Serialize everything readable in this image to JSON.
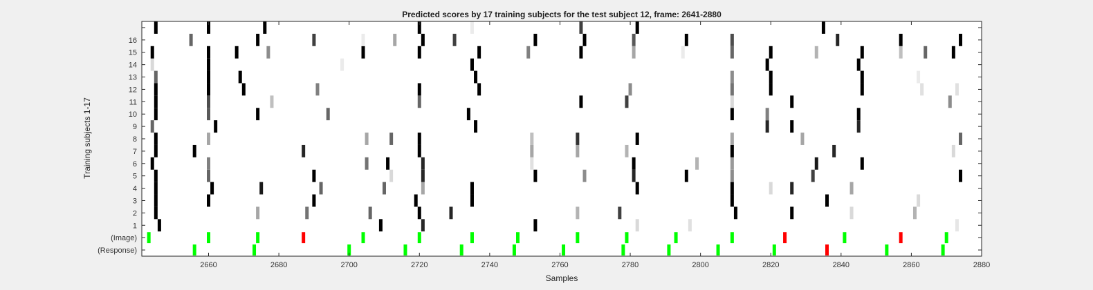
{
  "chart_data": {
    "type": "heatmap",
    "title": "Predicted scores by 17 training subjects for the test subject 12, frame: 2641-2880",
    "xlabel": "Samples",
    "ylabel": "Training subjects 1-17",
    "xlim": [
      2641,
      2880
    ],
    "xticks": [
      2660,
      2680,
      2700,
      2720,
      2740,
      2760,
      2780,
      2800,
      2820,
      2840,
      2860,
      2880
    ],
    "row_labels": [
      "(Response)",
      "(Image)",
      "1",
      "2",
      "3",
      "4",
      "5",
      "6",
      "7",
      "8",
      "9",
      "10",
      "11",
      "12",
      "13",
      "14",
      "15",
      "16",
      ""
    ],
    "colors": {
      "background": "#ffffff",
      "score_high": "#000000",
      "match": "#00ff00",
      "mismatch": "#ff0000"
    },
    "response_events": [
      {
        "x": 2656,
        "status": "match"
      },
      {
        "x": 2673,
        "status": "match"
      },
      {
        "x": 2700,
        "status": "match"
      },
      {
        "x": 2716,
        "status": "match"
      },
      {
        "x": 2732,
        "status": "match"
      },
      {
        "x": 2747,
        "status": "match"
      },
      {
        "x": 2761,
        "status": "match"
      },
      {
        "x": 2778,
        "status": "match"
      },
      {
        "x": 2791,
        "status": "match"
      },
      {
        "x": 2805,
        "status": "match"
      },
      {
        "x": 2821,
        "status": "match"
      },
      {
        "x": 2836,
        "status": "mismatch"
      },
      {
        "x": 2853,
        "status": "match"
      },
      {
        "x": 2869,
        "status": "match"
      }
    ],
    "image_events": [
      {
        "x": 2643,
        "status": "match"
      },
      {
        "x": 2660,
        "status": "match"
      },
      {
        "x": 2674,
        "status": "match"
      },
      {
        "x": 2687,
        "status": "mismatch"
      },
      {
        "x": 2704,
        "status": "match"
      },
      {
        "x": 2720,
        "status": "match"
      },
      {
        "x": 2735,
        "status": "match"
      },
      {
        "x": 2748,
        "status": "match"
      },
      {
        "x": 2765,
        "status": "match"
      },
      {
        "x": 2779,
        "status": "match"
      },
      {
        "x": 2793,
        "status": "match"
      },
      {
        "x": 2809,
        "status": "match"
      },
      {
        "x": 2824,
        "status": "mismatch"
      },
      {
        "x": 2841,
        "status": "match"
      },
      {
        "x": 2857,
        "status": "mismatch"
      },
      {
        "x": 2870,
        "status": "match"
      }
    ],
    "subject_scores": [
      {
        "row": 1,
        "cells": [
          [
            2646,
            1
          ],
          [
            2709,
            1
          ],
          [
            2721,
            0.85
          ],
          [
            2753,
            1
          ],
          [
            2782,
            0.15
          ],
          [
            2797,
            0.12
          ],
          [
            2873,
            0.1
          ]
        ]
      },
      {
        "row": 2,
        "cells": [
          [
            2645,
            1
          ],
          [
            2674,
            0.35
          ],
          [
            2688,
            0.55
          ],
          [
            2706,
            0.6
          ],
          [
            2720,
            1
          ],
          [
            2729,
            0.85
          ],
          [
            2765,
            0.3
          ],
          [
            2777,
            0.75
          ],
          [
            2810,
            1
          ],
          [
            2826,
            1
          ],
          [
            2843,
            0.15
          ],
          [
            2861,
            0.3
          ]
        ]
      },
      {
        "row": 3,
        "cells": [
          [
            2645,
            1
          ],
          [
            2660,
            1
          ],
          [
            2690,
            1
          ],
          [
            2719,
            1
          ],
          [
            2735,
            1
          ],
          [
            2809,
            1
          ],
          [
            2836,
            1
          ],
          [
            2862,
            0.15
          ]
        ]
      },
      {
        "row": 4,
        "cells": [
          [
            2645,
            1
          ],
          [
            2661,
            1
          ],
          [
            2675,
            0.9
          ],
          [
            2692,
            0.6
          ],
          [
            2710,
            0.6
          ],
          [
            2721,
            0.35
          ],
          [
            2735,
            1
          ],
          [
            2782,
            1
          ],
          [
            2809,
            1
          ],
          [
            2820,
            0.15
          ],
          [
            2826,
            0.85
          ],
          [
            2843,
            0.35
          ]
        ]
      },
      {
        "row": 5,
        "cells": [
          [
            2645,
            1
          ],
          [
            2660,
            0.6
          ],
          [
            2690,
            1
          ],
          [
            2712,
            0.15
          ],
          [
            2721,
            0.85
          ],
          [
            2753,
            1
          ],
          [
            2767,
            0.45
          ],
          [
            2781,
            0.85
          ],
          [
            2796,
            1
          ],
          [
            2809,
            0.45
          ],
          [
            2832,
            0.75
          ],
          [
            2874,
            1
          ]
        ]
      },
      {
        "row": 6,
        "cells": [
          [
            2644,
            1
          ],
          [
            2660,
            0.5
          ],
          [
            2705,
            0.55
          ],
          [
            2711,
            1
          ],
          [
            2721,
            0.85
          ],
          [
            2752,
            0.12
          ],
          [
            2781,
            1
          ],
          [
            2799,
            0.3
          ],
          [
            2809,
            0.4
          ],
          [
            2833,
            0.9
          ],
          [
            2846,
            1
          ]
        ]
      },
      {
        "row": 7,
        "cells": [
          [
            2645,
            1
          ],
          [
            2656,
            1
          ],
          [
            2687,
            0.85
          ],
          [
            2720,
            1
          ],
          [
            2752,
            0.35
          ],
          [
            2765,
            0.35
          ],
          [
            2779,
            0.3
          ],
          [
            2809,
            1
          ],
          [
            2838,
            0.85
          ],
          [
            2872,
            0.15
          ]
        ]
      },
      {
        "row": 8,
        "cells": [
          [
            2645,
            1
          ],
          [
            2660,
            0.35
          ],
          [
            2705,
            0.35
          ],
          [
            2712,
            0.6
          ],
          [
            2720,
            1
          ],
          [
            2752,
            0.25
          ],
          [
            2765,
            0.8
          ],
          [
            2782,
            1
          ],
          [
            2809,
            0.35
          ],
          [
            2829,
            0.35
          ],
          [
            2874,
            0.6
          ]
        ]
      },
      {
        "row": 9,
        "cells": [
          [
            2644,
            0.6
          ],
          [
            2662,
            1
          ],
          [
            2736,
            1
          ],
          [
            2819,
            0.85
          ],
          [
            2826,
            1
          ],
          [
            2845,
            0.85
          ]
        ]
      },
      {
        "row": 10,
        "cells": [
          [
            2645,
            1
          ],
          [
            2660,
            0.65
          ],
          [
            2674,
            1
          ],
          [
            2694,
            0.6
          ],
          [
            2734,
            1
          ],
          [
            2809,
            1
          ],
          [
            2819,
            0.5
          ],
          [
            2845,
            1
          ]
        ]
      },
      {
        "row": 11,
        "cells": [
          [
            2645,
            1
          ],
          [
            2660,
            0.7
          ],
          [
            2678,
            0.25
          ],
          [
            2720,
            0.6
          ],
          [
            2766,
            1
          ],
          [
            2779,
            0.75
          ],
          [
            2809,
            0.15
          ],
          [
            2826,
            1
          ],
          [
            2871,
            0.45
          ]
        ]
      },
      {
        "row": 12,
        "cells": [
          [
            2645,
            1
          ],
          [
            2660,
            1
          ],
          [
            2670,
            1
          ],
          [
            2691,
            0.5
          ],
          [
            2720,
            1
          ],
          [
            2737,
            1
          ],
          [
            2780,
            0.45
          ],
          [
            2809,
            0.55
          ],
          [
            2820,
            1
          ],
          [
            2846,
            1
          ],
          [
            2863,
            0.12
          ],
          [
            2873,
            0.12
          ]
        ]
      },
      {
        "row": 13,
        "cells": [
          [
            2645,
            0.6
          ],
          [
            2660,
            1
          ],
          [
            2669,
            1
          ],
          [
            2736,
            1
          ],
          [
            2809,
            0.45
          ],
          [
            2820,
            1
          ],
          [
            2846,
            1
          ],
          [
            2862,
            0.08
          ]
        ]
      },
      {
        "row": 14,
        "cells": [
          [
            2644,
            0.15
          ],
          [
            2660,
            1
          ],
          [
            2698,
            0.08
          ],
          [
            2735,
            1
          ],
          [
            2819,
            1
          ],
          [
            2845,
            1
          ]
        ]
      },
      {
        "row": 15,
        "cells": [
          [
            2644,
            1
          ],
          [
            2660,
            1
          ],
          [
            2668,
            1
          ],
          [
            2677,
            0.45
          ],
          [
            2704,
            1
          ],
          [
            2720,
            1
          ],
          [
            2737,
            1
          ],
          [
            2751,
            0.5
          ],
          [
            2766,
            1
          ],
          [
            2781,
            0.35
          ],
          [
            2795,
            0.08
          ],
          [
            2809,
            0.6
          ],
          [
            2820,
            1
          ],
          [
            2833,
            0.3
          ],
          [
            2846,
            1
          ],
          [
            2857,
            0.25
          ],
          [
            2864,
            0.6
          ],
          [
            2872,
            1
          ]
        ]
      },
      {
        "row": 16,
        "cells": [
          [
            2655,
            0.6
          ],
          [
            2674,
            1
          ],
          [
            2690,
            0.75
          ],
          [
            2704,
            0.08
          ],
          [
            2713,
            0.35
          ],
          [
            2721,
            1
          ],
          [
            2730,
            0.75
          ],
          [
            2753,
            1
          ],
          [
            2767,
            1
          ],
          [
            2781,
            0.65
          ],
          [
            2796,
            1
          ],
          [
            2809,
            0.7
          ],
          [
            2839,
            0.85
          ],
          [
            2857,
            1
          ],
          [
            2874,
            1
          ]
        ]
      },
      {
        "row": 17,
        "cells": [
          [
            2645,
            1
          ],
          [
            2660,
            1
          ],
          [
            2676,
            1
          ],
          [
            2720,
            1
          ],
          [
            2735,
            0.08
          ],
          [
            2766,
            0.75
          ],
          [
            2782,
            1
          ],
          [
            2835,
            1
          ]
        ]
      }
    ]
  }
}
